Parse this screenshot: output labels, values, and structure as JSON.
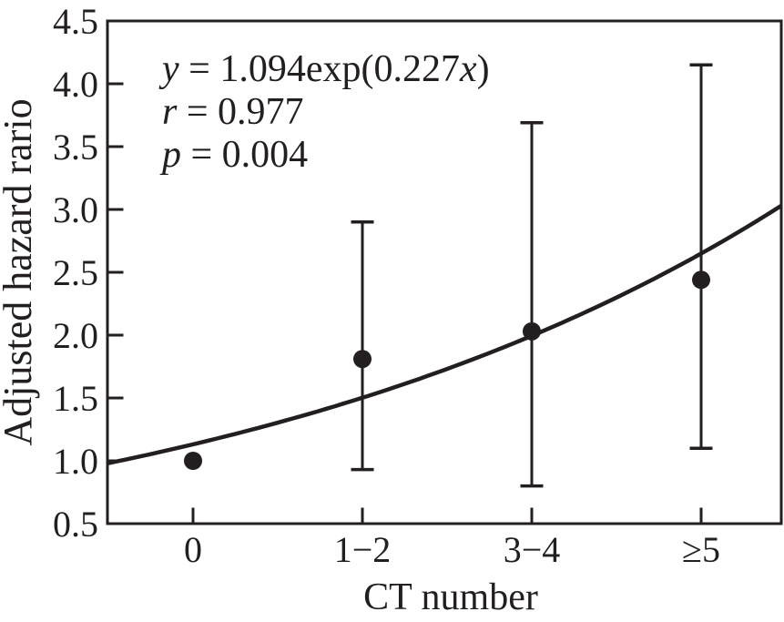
{
  "figure": {
    "background": "#ffffff",
    "ink_color": "#231f20"
  },
  "chart_data": {
    "type": "scatter",
    "title": "",
    "xlabel": "CT number",
    "ylabel": "Adjusted hazard rario",
    "categories": [
      "0",
      "1−2",
      "3−4",
      "≥5"
    ],
    "points": [
      {
        "category": "0",
        "y": 1.0,
        "ci_low": null,
        "ci_high": null
      },
      {
        "category": "1−2",
        "y": 1.81,
        "ci_low": 0.93,
        "ci_high": 2.9
      },
      {
        "category": "3−4",
        "y": 2.03,
        "ci_low": 0.8,
        "ci_high": 3.69
      },
      {
        "category": "≥5",
        "y": 2.44,
        "ci_low": 1.1,
        "ci_high": 4.15
      }
    ],
    "fit": {
      "equation": "y = 1.094exp(0.227x)",
      "r": 0.977,
      "p": 0.004,
      "curve_value_at_left_edge": 0.98,
      "curve_value_at_right_edge": 3.03
    },
    "annotation": {
      "lines": [
        [
          {
            "t": "y",
            "italic": true
          },
          {
            "t": " = 1.094exp(0.227"
          },
          {
            "t": "x",
            "italic": true
          },
          {
            "t": ")"
          }
        ],
        [
          {
            "t": "r",
            "italic": true
          },
          {
            "t": " = 0.977"
          }
        ],
        [
          {
            "t": "p",
            "italic": true
          },
          {
            "t": " = 0.004"
          }
        ]
      ]
    },
    "ylim": [
      0.5,
      4.5
    ],
    "yticks": [
      "4.5",
      "4.0",
      "3.5",
      "3.0",
      "2.5",
      "2.0",
      "1.5",
      "1.0",
      "0.5"
    ],
    "grid": false,
    "legend": "none"
  }
}
